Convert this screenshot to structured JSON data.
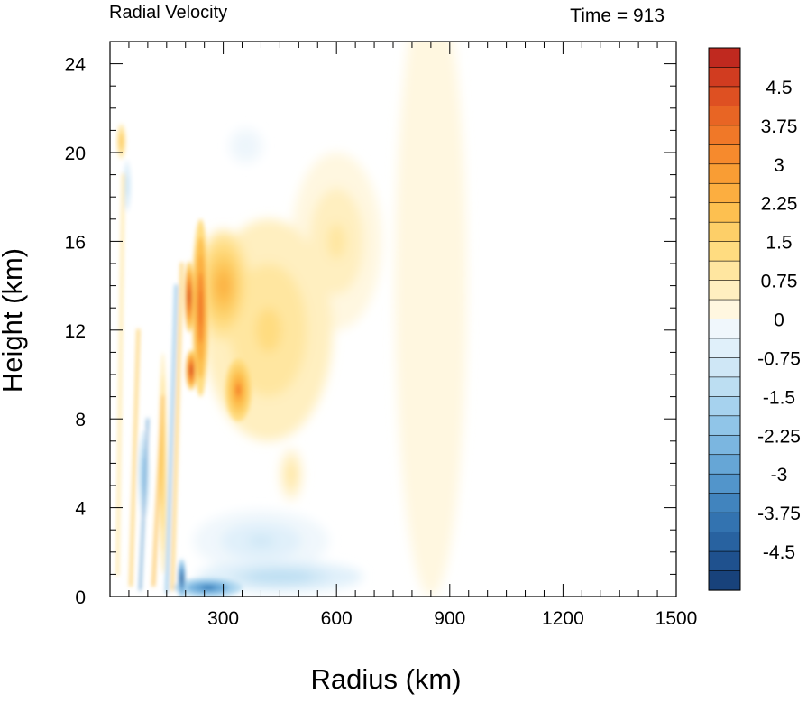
{
  "chart_data": {
    "type": "heatmap",
    "title": "Radial Velocity",
    "subtitle": "Time = 913",
    "xlabel": "Radius (km)",
    "ylabel": "Height (km)",
    "xlim": [
      0,
      1500
    ],
    "ylim": [
      0,
      25
    ],
    "x_ticks": [
      300,
      600,
      900,
      1200,
      1500
    ],
    "y_ticks": [
      0,
      4,
      8,
      12,
      16,
      20,
      24
    ],
    "colorbar": {
      "range": [
        -5.25,
        5.25
      ],
      "levels": 28,
      "labels": [
        "4.5",
        "3.75",
        "3",
        "2.25",
        "1.5",
        "0.75",
        "0",
        "-0.75",
        "-1.5",
        "-2.25",
        "-3",
        "-3.75",
        "-4.5"
      ],
      "label_values": [
        4.5,
        3.75,
        3,
        2.25,
        1.5,
        0.75,
        0,
        -0.75,
        -1.5,
        -2.25,
        -3,
        -3.75,
        -4.5
      ],
      "positive_colors": [
        "#ffffff",
        "#fff7e0",
        "#ffefc0",
        "#ffe6a0",
        "#ffdc80",
        "#fdcf68",
        "#fdc050",
        "#fcae40",
        "#f99d34",
        "#f68a2d",
        "#f07828",
        "#e86524",
        "#de5022",
        "#d13c20",
        "#c0291f",
        "#a81c1f",
        "#8e1518"
      ],
      "negative_colors": [
        "#ffffff",
        "#f0f7fc",
        "#e0f0fa",
        "#cfe7f6",
        "#bcdef2",
        "#a6d2ee",
        "#90c5e8",
        "#7bb6e0",
        "#66a6d6",
        "#5295cb",
        "#4184be",
        "#3373b0",
        "#2862a0",
        "#1f518e",
        "#18427b",
        "#123466"
      ]
    },
    "features": [
      {
        "name": "outflow-core",
        "r": 210,
        "z": 13.5,
        "value": 5.0
      },
      {
        "name": "outflow-core-lower",
        "r": 215,
        "z": 10.2,
        "value": 5.0
      },
      {
        "name": "outflow-mid",
        "r": 240,
        "z": 13.0,
        "value": 3.8
      },
      {
        "name": "outflow-lobe",
        "r": 340,
        "z": 9.3,
        "value": 3.3
      },
      {
        "name": "outflow-upper",
        "r": 300,
        "z": 14.0,
        "value": 2.6
      },
      {
        "name": "outflow-spread",
        "r": 420,
        "z": 12.0,
        "value": 1.5
      },
      {
        "name": "outflow-far-upper",
        "r": 600,
        "z": 16.0,
        "value": 1.0
      },
      {
        "name": "outflow-far",
        "r": 850,
        "z": 14.0,
        "value": 0.5
      },
      {
        "name": "inflow-boundary-layer",
        "r": 260,
        "z": 0.4,
        "value": -3.6
      },
      {
        "name": "inflow-near",
        "r": 190,
        "z": 0.8,
        "value": -5.0
      },
      {
        "name": "inflow-shallow",
        "r": 450,
        "z": 0.9,
        "value": -1.6
      },
      {
        "name": "inflow-mid-level",
        "r": 400,
        "z": 2.5,
        "value": -1.0
      },
      {
        "name": "inflow-inner",
        "r": 90,
        "z": 5.5,
        "value": -2.0
      },
      {
        "name": "inflow-upper",
        "r": 360,
        "z": 20.3,
        "value": -0.6
      },
      {
        "name": "inflow-upper-inner",
        "r": 45,
        "z": 18.5,
        "value": -1.2
      },
      {
        "name": "outflow-eyewall-low",
        "r": 140,
        "z": 6.0,
        "value": 2.0
      },
      {
        "name": "outflow-lower-lobe",
        "r": 480,
        "z": 5.5,
        "value": 1.2
      },
      {
        "name": "outflow-top-inner",
        "r": 30,
        "z": 20.5,
        "value": 2.0
      }
    ]
  }
}
